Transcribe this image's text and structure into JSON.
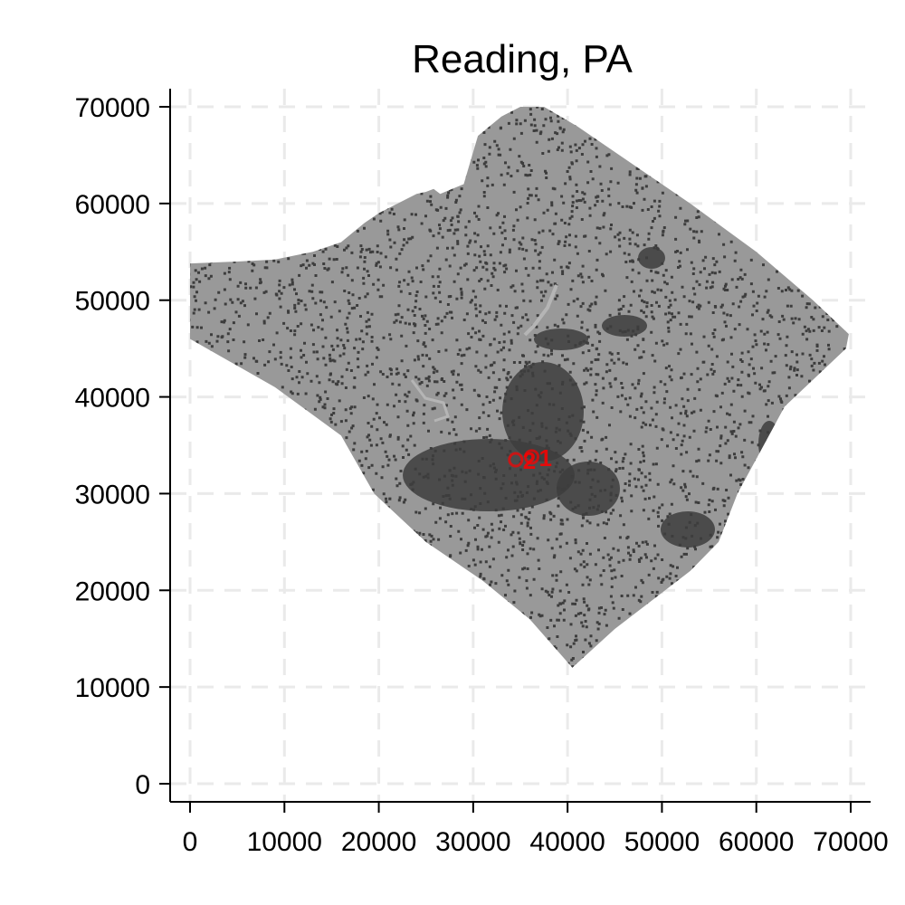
{
  "chart_data": {
    "type": "scatter",
    "title": "Reading, PA",
    "xlabel": "",
    "ylabel": "",
    "xlim": [
      0,
      70000
    ],
    "ylim": [
      0,
      70000
    ],
    "x_ticks": [
      "0",
      "10000",
      "20000",
      "30000",
      "40000",
      "50000",
      "60000",
      "70000"
    ],
    "y_ticks": [
      "0",
      "10000",
      "20000",
      "30000",
      "40000",
      "50000",
      "60000",
      "70000"
    ],
    "grid": true,
    "region_outline": {
      "x": [
        0,
        0,
        5000,
        9000,
        13000,
        16000,
        18500,
        20000,
        22000,
        24000,
        25000,
        25800,
        26500,
        29000,
        30500,
        33000,
        35000,
        37500,
        41000,
        47000,
        53000,
        60000,
        66000,
        69800,
        69500,
        63000,
        58000,
        56000,
        53000,
        49000,
        45000,
        40500,
        36000,
        31000,
        25000,
        19500,
        16000,
        9000,
        0
      ],
      "y": [
        46000,
        53800,
        54000,
        54200,
        55000,
        56000,
        58000,
        59000,
        60000,
        61000,
        61200,
        61500,
        61000,
        62000,
        67000,
        69000,
        70000,
        70000,
        68000,
        64000,
        60000,
        55000,
        50000,
        46500,
        45000,
        39000,
        30000,
        25000,
        22000,
        19000,
        16000,
        12000,
        17000,
        21000,
        25000,
        30000,
        36000,
        41000,
        46000
      ]
    },
    "points": [
      {
        "label": "2",
        "x": 34500,
        "y": 33500
      },
      {
        "label": "1",
        "x": 36200,
        "y": 33800
      }
    ],
    "colors": {
      "land": "#999999",
      "developed": "#3d3d3d",
      "water": "#b5b5b5",
      "marker": "#ff0000",
      "grid": "#eaeaea",
      "axis": "#000000"
    }
  }
}
